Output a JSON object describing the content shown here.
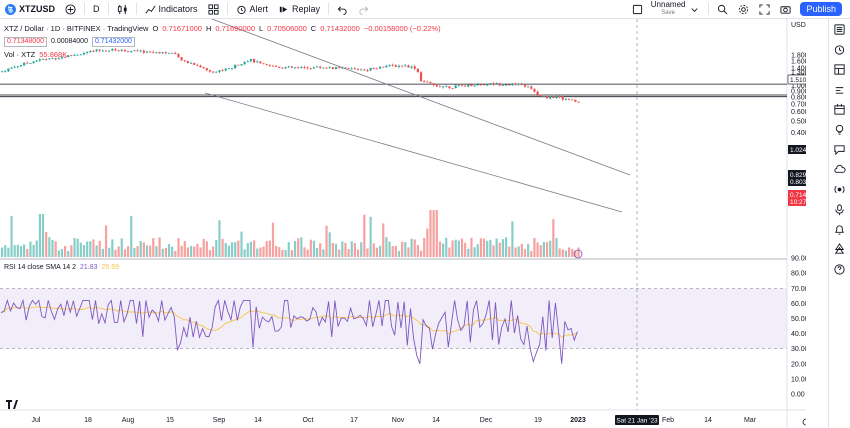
{
  "toolbar": {
    "symbol": "XTZUSD",
    "interval": "D",
    "indicators_label": "Indicators",
    "alert_label": "Alert",
    "replay_label": "Replay",
    "layout_name": "Unnamed",
    "layout_status": "Save",
    "publish_label": "Publish"
  },
  "legend": {
    "title": "XTZ / Dollar · 1D · BITFINEX · TradingView",
    "open_key": "O",
    "open": "0.71671000",
    "high_key": "H",
    "high": "0.71690000",
    "low_key": "L",
    "low": "0.70506000",
    "close_key": "C",
    "close": "0.71432000",
    "change": "−0.00158000 (−0.22%)",
    "sell_price": "0.71348000",
    "spread": "0.00084000",
    "buy_price": "0.71432000",
    "vol_label": "Vol · XTZ",
    "vol_value": "55.868K"
  },
  "rsi_legend": {
    "label": "RSI 14 close SMA 14 2",
    "rsi": "21.83",
    "sma": "25.69"
  },
  "price_axis": {
    "currency": "USD",
    "ticks": [
      "1.80000000",
      "1.60000000",
      "1.40000000",
      "1.20000000",
      "1.00000000",
      "0.90000000",
      "0.80000000",
      "0.70000000",
      "0.60000000",
      "0.50000000",
      "0.40000000",
      "0.30000000"
    ],
    "extra_ticks": [
      "1.30000000",
      "1.10000000"
    ],
    "tags": [
      {
        "text": "1.51036363",
        "style": "outline"
      },
      {
        "text": "1.02432179",
        "style": "dark"
      },
      {
        "text": "0.82976823",
        "style": "dark"
      },
      {
        "text": "0.80317945",
        "style": "dark"
      },
      {
        "text": "0.71432000",
        "style": "red"
      },
      {
        "text": "10:27:47",
        "style": "red"
      }
    ]
  },
  "rsi_axis": {
    "ticks": [
      "90.00",
      "80.00",
      "70.00",
      "60.00",
      "50.00",
      "40.00",
      "30.00",
      "20.00",
      "10.00",
      "0.00"
    ]
  },
  "time_axis": {
    "labels": [
      "Jul",
      "18",
      "Aug",
      "15",
      "Sep",
      "14",
      "Oct",
      "17",
      "Nov",
      "14",
      "Dec",
      "19",
      "2023",
      "Feb",
      "14",
      "Mar"
    ],
    "crosshair_label": "Sat 21 Jan '23"
  },
  "chart_data": {
    "type": "candlestick",
    "symbol": "XTZUSD",
    "exchange": "BITFINEX",
    "interval": "1D",
    "scale": "log",
    "grid": false,
    "ylim": [
      0.3,
      1.9
    ],
    "horizontal_lines": [
      1.02432179,
      0.82976823,
      0.80317945
    ],
    "last_close": 0.71432,
    "rsi_sma": 25.69,
    "rsi_last": 21.83,
    "rsi_band": [
      30,
      70
    ],
    "rsi_ylim": [
      0,
      90
    ],
    "x": [
      "Jul",
      "18",
      "Aug",
      "15",
      "Sep",
      "14",
      "Oct",
      "17",
      "Nov",
      "14",
      "Dec",
      "19",
      "2023"
    ]
  },
  "colors": {
    "up": "#26a69a",
    "down": "#ef5350",
    "rsi_line": "#7e57c2",
    "rsi_sma": "#f7c548",
    "rsi_band": "#ede7f6",
    "accent": "#2962ff"
  }
}
